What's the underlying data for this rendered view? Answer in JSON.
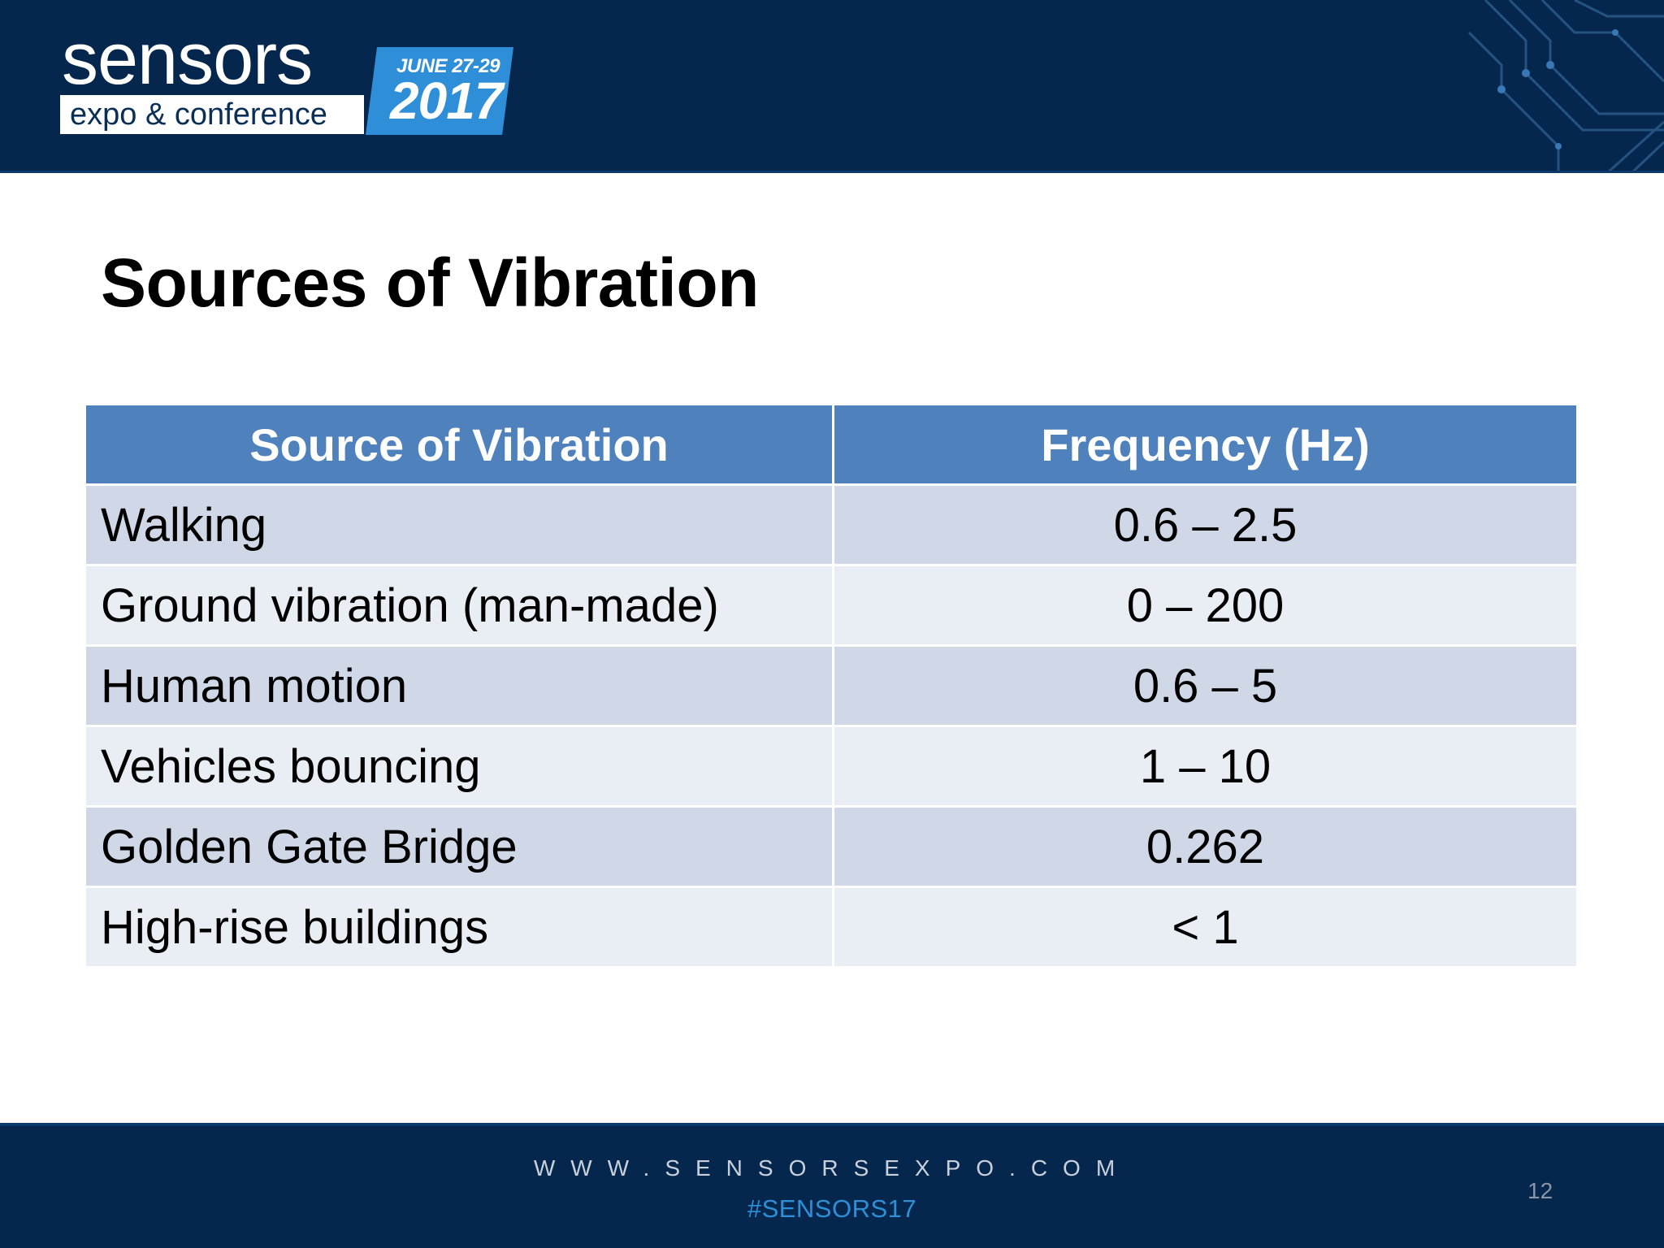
{
  "header": {
    "logo": {
      "word": "sensors",
      "subtitle": "expo & conference",
      "dates": "JUNE 27-29",
      "year": "2017"
    }
  },
  "slide": {
    "title": "Sources of Vibration"
  },
  "table": {
    "headers": [
      "Source of Vibration",
      "Frequency (Hz)"
    ],
    "rows": [
      [
        "Walking",
        "0.6 – 2.5"
      ],
      [
        "Ground vibration (man-made)",
        "0 – 200"
      ],
      [
        "Human motion",
        "0.6 – 5"
      ],
      [
        "Vehicles bouncing",
        "1 – 10"
      ],
      [
        "Golden Gate Bridge",
        "0.262"
      ],
      [
        "High-rise buildings",
        "< 1"
      ]
    ]
  },
  "footer": {
    "website": "WWW.SENSORSEXPO.COM",
    "hashtag": "#SENSORS17",
    "page_number": "12"
  },
  "colors": {
    "header_bg": "#06274d",
    "table_header_bg": "#4f81bd",
    "row_odd_bg": "#d0d8e8",
    "row_even_bg": "#e9edf4",
    "hashtag": "#2f8fd6"
  }
}
